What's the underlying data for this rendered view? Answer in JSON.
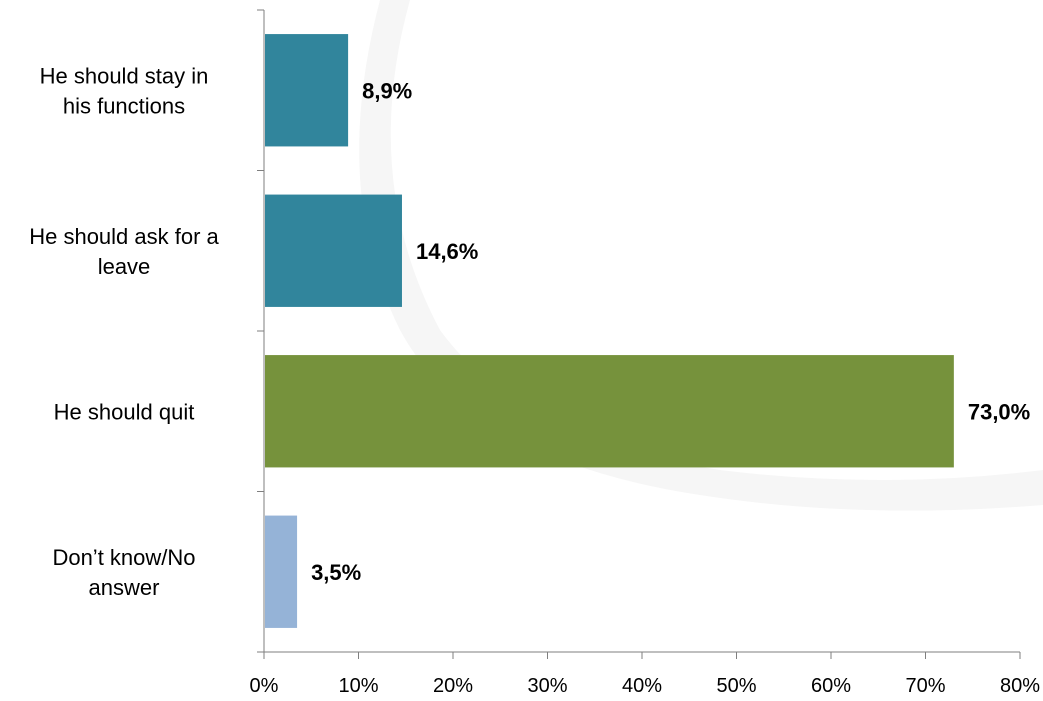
{
  "chart_data": {
    "type": "bar",
    "orientation": "horizontal",
    "categories": [
      [
        "He should stay in",
        "his functions"
      ],
      [
        "He should ask for a",
        "leave"
      ],
      [
        "He should quit"
      ],
      [
        "Don’t know/No",
        "answer"
      ]
    ],
    "values": [
      8.9,
      14.6,
      73.0,
      3.5
    ],
    "data_labels": [
      "8,9%",
      "14,6%",
      "73,0%",
      "3,5%"
    ],
    "colors": [
      "#31859c",
      "#31859c",
      "#76923c",
      "#95b3d7"
    ],
    "xlim": [
      0,
      80
    ],
    "xticks": [
      0,
      10,
      20,
      30,
      40,
      50,
      60,
      70,
      80
    ],
    "xtick_labels": [
      "0%",
      "10%",
      "20%",
      "30%",
      "40%",
      "50%",
      "60%",
      "70%",
      "80%"
    ],
    "grid": false,
    "legend": "none",
    "title": "",
    "xlabel": "",
    "ylabel": ""
  }
}
